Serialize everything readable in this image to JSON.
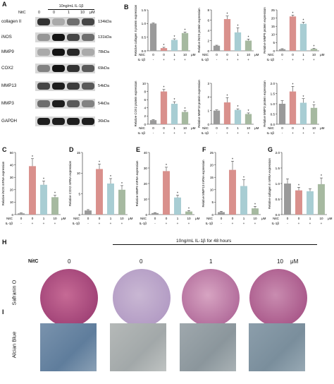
{
  "panels": {
    "A": "A",
    "B": "B",
    "C": "C",
    "D": "D",
    "E": "E",
    "F": "F",
    "G": "G",
    "H": "H",
    "I": "I"
  },
  "blot": {
    "treatment": "10ng/mL IL-1β",
    "nitc_label": "NitC",
    "doses": [
      "0",
      "0",
      "1",
      "10"
    ],
    "unit": "μM",
    "rows": [
      {
        "protein": "collagen II",
        "kda": "134kDa",
        "intensity": [
          0.8,
          0.2,
          0.5,
          0.7
        ]
      },
      {
        "protein": "iNOS",
        "kda": "131kDa",
        "intensity": [
          0.3,
          0.95,
          0.7,
          0.5
        ]
      },
      {
        "protein": "MMP9",
        "kda": "78kDa",
        "intensity": [
          0.2,
          0.95,
          0.85,
          0.2
        ]
      },
      {
        "protein": "COX2",
        "kda": "69kDa",
        "intensity": [
          0.4,
          0.95,
          0.8,
          0.6
        ]
      },
      {
        "protein": "MMP13",
        "kda": "54kDa",
        "intensity": [
          0.7,
          0.9,
          0.75,
          0.6
        ]
      },
      {
        "protein": "MMP3",
        "kda": "54kDa",
        "intensity": [
          0.5,
          0.9,
          0.6,
          0.4
        ]
      },
      {
        "protein": "GAPDH",
        "kda": "36kDa",
        "intensity": [
          0.9,
          0.9,
          0.9,
          0.9
        ]
      }
    ]
  },
  "xaxis": {
    "nitc_label": "NitC",
    "il_label": "IL-1β",
    "nitc": [
      "0",
      "0",
      "1",
      "10"
    ],
    "il": [
      "-",
      "+",
      "+",
      "+"
    ],
    "unit": "μM"
  },
  "colors": {
    "ctrl": "#9a9a9a",
    "il": "#d9908c",
    "low": "#a8cdd3",
    "high": "#a6b9a0",
    "safranin": "#b24f7e",
    "alcian": "#7a8fa8"
  },
  "chart_data": [
    {
      "type": "bar",
      "panel": "B",
      "ylabel": "Relative collagen II protein expression",
      "yticks": [
        "0.0",
        "0.5",
        "1.0",
        "1.5"
      ],
      "ylim": [
        0,
        1.5
      ],
      "categories": [
        "Control",
        "IL-1β",
        "IL-1β+1μM",
        "IL-1β+10μM"
      ],
      "values": [
        1.0,
        0.1,
        0.4,
        0.65
      ],
      "errors": [
        0.02,
        0.03,
        0.04,
        0.04
      ],
      "sig": [
        "",
        "*",
        "*",
        "*"
      ]
    },
    {
      "type": "bar",
      "panel": "B",
      "ylabel": "Relative iNOS protein expression",
      "yticks": [
        "0",
        "2",
        "4",
        "6",
        "8"
      ],
      "ylim": [
        0,
        8
      ],
      "categories": [
        "Control",
        "IL-1β",
        "IL-1β+1μM",
        "IL-1β+10μM"
      ],
      "values": [
        1.0,
        6.2,
        3.6,
        2.0
      ],
      "errors": [
        0.1,
        0.6,
        0.9,
        0.3
      ],
      "sig": [
        "",
        "*",
        "*",
        "*"
      ]
    },
    {
      "type": "bar",
      "panel": "B",
      "ylabel": "Relative MMP9 protein expression",
      "yticks": [
        "0",
        "5",
        "10",
        "15",
        "20",
        "25"
      ],
      "ylim": [
        0,
        25
      ],
      "categories": [
        "Control",
        "IL-1β",
        "IL-1β+1μM",
        "IL-1β+10μM"
      ],
      "values": [
        1.0,
        21.0,
        16.5,
        1.2
      ],
      "errors": [
        0.3,
        0.8,
        1.0,
        0.3
      ],
      "sig": [
        "",
        "*",
        "*",
        "*"
      ]
    },
    {
      "type": "bar",
      "panel": "B",
      "ylabel": "Relative COX2 protein expression",
      "yticks": [
        "0",
        "2",
        "4",
        "6",
        "8",
        "10"
      ],
      "ylim": [
        0,
        10
      ],
      "categories": [
        "Control",
        "IL-1β",
        "IL-1β+1μM",
        "IL-1β+10μM"
      ],
      "values": [
        1.0,
        8.0,
        5.0,
        3.0
      ],
      "errors": [
        0.1,
        0.5,
        0.5,
        0.3
      ],
      "sig": [
        "",
        "*",
        "*",
        "*"
      ]
    },
    {
      "type": "bar",
      "panel": "B",
      "ylabel": "Relative MMP13 protein expression",
      "yticks": [
        "0",
        "1",
        "2",
        "3"
      ],
      "ylim": [
        0,
        3
      ],
      "categories": [
        "Control",
        "IL-1β",
        "IL-1β+1μM",
        "IL-1β+10μM"
      ],
      "values": [
        1.0,
        1.6,
        1.05,
        0.75
      ],
      "errors": [
        0.05,
        0.35,
        0.08,
        0.08
      ],
      "sig": [
        "",
        "*",
        "*",
        "*"
      ]
    },
    {
      "type": "bar",
      "panel": "B",
      "ylabel": "Relative MMP3 protein expression",
      "yticks": [
        "0.0",
        "0.5",
        "1.0",
        "1.5",
        "2.0"
      ],
      "ylim": [
        0,
        2
      ],
      "categories": [
        "Control",
        "IL-1β",
        "IL-1β+1μM",
        "IL-1β+10μM"
      ],
      "values": [
        1.0,
        1.6,
        1.05,
        0.8
      ],
      "errors": [
        0.15,
        0.25,
        0.2,
        0.15
      ],
      "sig": [
        "",
        "*",
        "*",
        "*"
      ]
    },
    {
      "type": "bar",
      "panel": "C",
      "ylabel": "Relative iNOS mRNA expression",
      "yticks": [
        "0",
        "10",
        "20",
        "30",
        "40",
        "50"
      ],
      "ylim": [
        0,
        50
      ],
      "categories": [
        "Control",
        "IL-1β",
        "IL-1β+1μM",
        "IL-1β+10μM"
      ],
      "values": [
        1.0,
        39.0,
        24.0,
        14.0
      ],
      "errors": [
        0.3,
        6.0,
        3.0,
        1.5
      ],
      "sig": [
        "",
        "*",
        "*",
        "*"
      ]
    },
    {
      "type": "bar",
      "panel": "D",
      "ylabel": "Relative COX2 mRNA expression",
      "yticks": [
        "0",
        "5",
        "10",
        "15"
      ],
      "ylim": [
        0,
        15
      ],
      "categories": [
        "Control",
        "IL-1β",
        "IL-1β+1μM",
        "IL-1β+10μM"
      ],
      "values": [
        1.0,
        11.0,
        7.5,
        6.0
      ],
      "errors": [
        0.2,
        1.2,
        1.2,
        1.0
      ],
      "sig": [
        "",
        "*",
        "*",
        "*"
      ]
    },
    {
      "type": "bar",
      "panel": "E",
      "ylabel": "Relative MMP9 mRNA expression",
      "yticks": [
        "0",
        "10",
        "20",
        "30",
        "40"
      ],
      "ylim": [
        0,
        40
      ],
      "categories": [
        "Control",
        "IL-1β",
        "IL-1β+1μM",
        "IL-1β+10μM"
      ],
      "values": [
        1.0,
        28.0,
        11.0,
        2.0
      ],
      "errors": [
        0.3,
        2.5,
        1.5,
        0.6
      ],
      "sig": [
        "",
        "*",
        "*",
        "*"
      ]
    },
    {
      "type": "bar",
      "panel": "F",
      "ylabel": "Relative MMP13 mRNA expression",
      "yticks": [
        "0",
        "5",
        "10",
        "15",
        "20",
        "25"
      ],
      "ylim": [
        0,
        25
      ],
      "categories": [
        "Control",
        "IL-1β",
        "IL-1β+1μM",
        "IL-1β+10μM"
      ],
      "values": [
        1.0,
        18.0,
        11.5,
        2.5
      ],
      "errors": [
        0.3,
        3.5,
        2.5,
        0.8
      ],
      "sig": [
        "",
        "*",
        "*",
        "*"
      ]
    },
    {
      "type": "bar",
      "panel": "G",
      "ylabel": "Relative collagen II mRNA expression",
      "yticks": [
        "0.0",
        "0.5",
        "1.0",
        "1.5",
        "2.0"
      ],
      "ylim": [
        0,
        2
      ],
      "categories": [
        "Control",
        "IL-1β",
        "IL-1β+1μM",
        "IL-1β+10μM"
      ],
      "values": [
        1.0,
        0.78,
        0.75,
        0.98
      ],
      "errors": [
        0.15,
        0.1,
        0.08,
        0.2
      ],
      "sig": [
        "",
        "*",
        "",
        "*"
      ]
    }
  ],
  "stain": {
    "treatment": "10ng/mL IL-1β for 48 hours",
    "nitc_label": "NitC",
    "doses": [
      "0",
      "0",
      "1",
      "10"
    ],
    "unit": "μM",
    "safranin_label": "Safranin O",
    "alcian_label": "Alcian Blue"
  }
}
